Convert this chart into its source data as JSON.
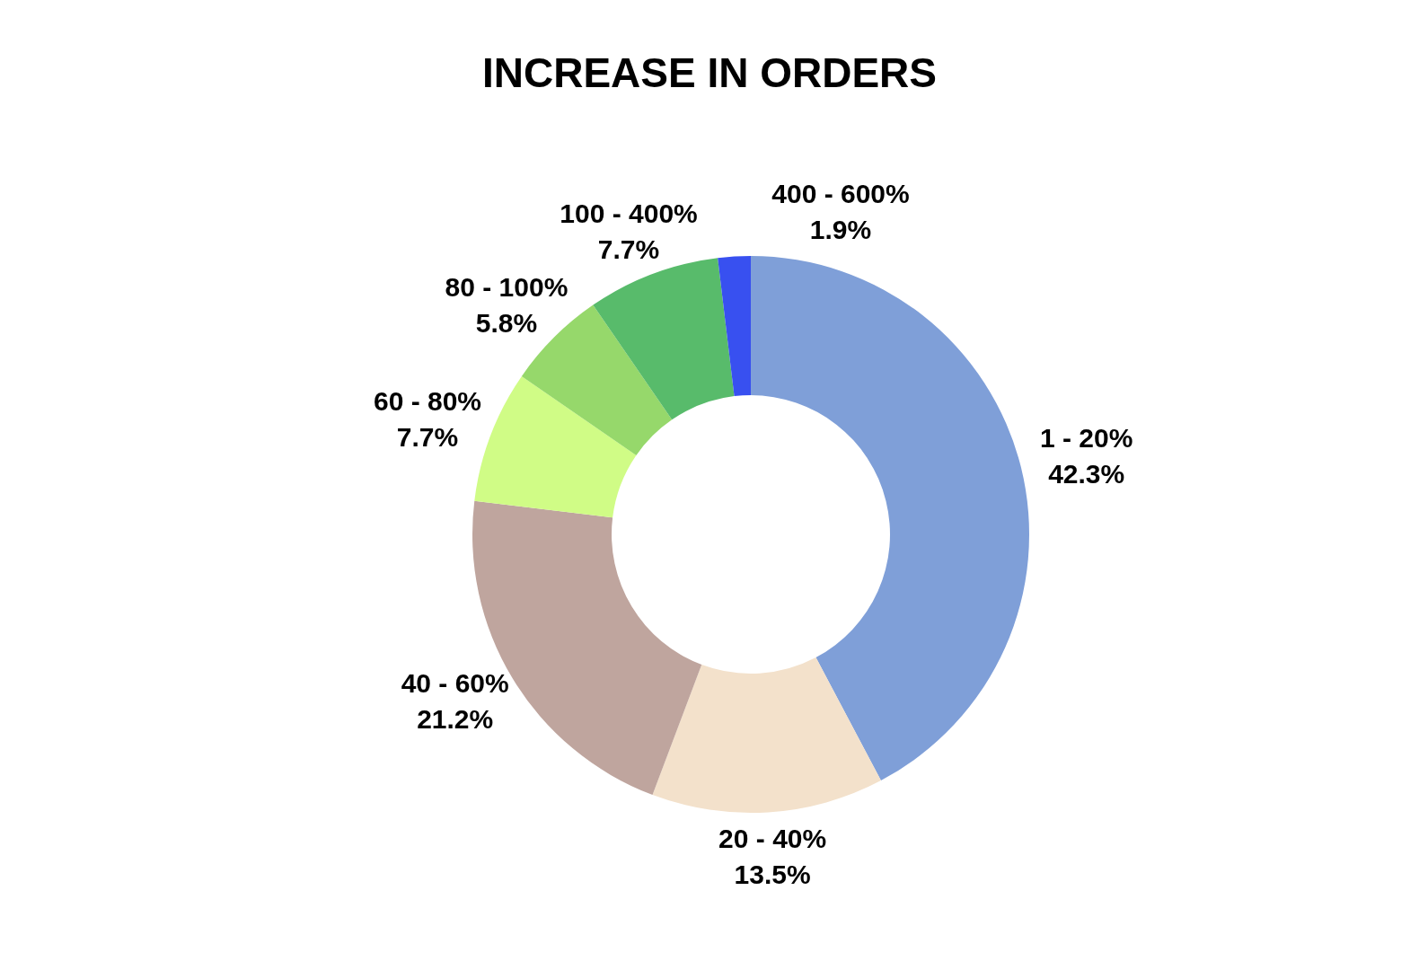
{
  "chart_data": {
    "type": "donut",
    "title": "INCREASE IN ORDERS",
    "categories": [
      "1 - 20%",
      "20 - 40%",
      "40 - 60%",
      "60 - 80%",
      "80 - 100%",
      "100 - 400%",
      "400 - 600%"
    ],
    "values": [
      42.3,
      13.5,
      21.2,
      7.7,
      5.8,
      7.7,
      1.9
    ],
    "value_labels": [
      "42.3%",
      "13.5%",
      "21.2%",
      "7.7%",
      "5.8%",
      "7.7%",
      "1.9%"
    ],
    "colors": [
      "#7f9fd8",
      "#f3e1cb",
      "#bfa59e",
      "#d0fc86",
      "#96d86b",
      "#58bb6b",
      "#3850f0"
    ],
    "legend": false
  }
}
